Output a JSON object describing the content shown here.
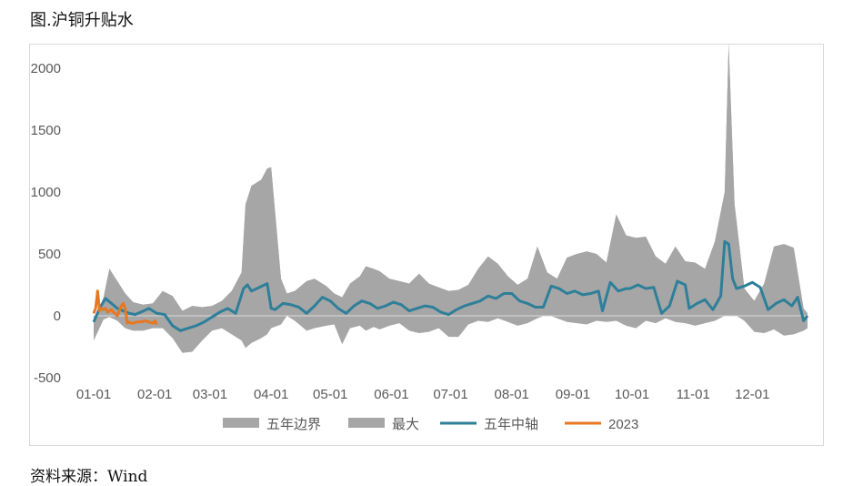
{
  "figure_title": "图.沪铜升贴水",
  "source_note": "资料来源：Wind",
  "colors": {
    "band_fill": "#a6a6a6",
    "max_fill": "#a6a6a6",
    "median_line": "#2e7f99",
    "current_line": "#e87722",
    "zero_line": "#d9d9d9",
    "tick_text": "#595959"
  },
  "chart_data": {
    "type": "area",
    "title": "",
    "xlabel": "",
    "ylabel": "",
    "ylim": [
      -500,
      2000
    ],
    "yticks": [
      -500,
      0,
      500,
      1000,
      1500,
      2000
    ],
    "xlim": [
      0,
      362
    ],
    "xticks": [
      {
        "label": "01-01",
        "x": 0
      },
      {
        "label": "02-01",
        "x": 31
      },
      {
        "label": "03-01",
        "x": 59
      },
      {
        "label": "04-01",
        "x": 90
      },
      {
        "label": "05-01",
        "x": 120
      },
      {
        "label": "06-01",
        "x": 151
      },
      {
        "label": "07-01",
        "x": 181
      },
      {
        "label": "08-01",
        "x": 212
      },
      {
        "label": "09-01",
        "x": 243
      },
      {
        "label": "10-01",
        "x": 273
      },
      {
        "label": "11-01",
        "x": 304
      },
      {
        "label": "12-01",
        "x": 334
      }
    ],
    "grid": false,
    "legend_position": "bottom",
    "legend": [
      "五年边界",
      "最大",
      "五年中轴",
      "2023"
    ],
    "series": [
      {
        "name": "五年边界",
        "kind": "band",
        "x": [
          0,
          5,
          8,
          12,
          16,
          20,
          25,
          30,
          35,
          40,
          45,
          50,
          55,
          60,
          65,
          70,
          75,
          77,
          80,
          85,
          88,
          90,
          95,
          98,
          102,
          108,
          112,
          118,
          122,
          126,
          130,
          135,
          138,
          142,
          145,
          150,
          155,
          160,
          165,
          170,
          175,
          180,
          185,
          190,
          195,
          200,
          205,
          210,
          215,
          220,
          225,
          230,
          235,
          240,
          245,
          250,
          255,
          260,
          265,
          270,
          275,
          280,
          285,
          290,
          295,
          300,
          305,
          310,
          315,
          320,
          322,
          325,
          330,
          335,
          340,
          345,
          350,
          355,
          360,
          362
        ],
        "lower": [
          -200,
          -30,
          -10,
          -40,
          -100,
          -120,
          -120,
          -100,
          -100,
          -180,
          -300,
          -290,
          -200,
          -120,
          -100,
          -150,
          -200,
          -260,
          -220,
          -180,
          -150,
          -100,
          -70,
          0,
          -40,
          -120,
          -100,
          -80,
          -70,
          -230,
          -100,
          -80,
          -120,
          -90,
          -110,
          -80,
          -60,
          -120,
          -140,
          -130,
          -100,
          -170,
          -170,
          -70,
          -40,
          -50,
          -20,
          -50,
          -80,
          -60,
          -20,
          10,
          -20,
          -50,
          -60,
          -70,
          -40,
          -50,
          -40,
          -80,
          -100,
          -40,
          -60,
          -20,
          -50,
          -60,
          -80,
          -60,
          -40,
          0,
          20,
          10,
          -40,
          -130,
          -140,
          -110,
          -160,
          -150,
          -120,
          -100
        ],
        "upper": [
          -60,
          150,
          380,
          280,
          180,
          110,
          90,
          100,
          200,
          160,
          40,
          80,
          70,
          80,
          120,
          200,
          350,
          900,
          1050,
          1100,
          1190,
          1200,
          300,
          180,
          200,
          280,
          300,
          240,
          180,
          150,
          260,
          320,
          400,
          380,
          360,
          300,
          280,
          260,
          340,
          260,
          230,
          200,
          210,
          250,
          380,
          480,
          420,
          320,
          250,
          300,
          560,
          350,
          300,
          470,
          500,
          520,
          500,
          430,
          820,
          650,
          630,
          640,
          480,
          420,
          560,
          440,
          430,
          380,
          600,
          1000,
          2200,
          900,
          220,
          120,
          260,
          560,
          580,
          550,
          60,
          20
        ]
      },
      {
        "name": "最大",
        "kind": "area",
        "x": [
          0,
          5,
          8,
          12,
          16,
          20,
          25,
          30,
          35,
          40,
          45,
          50,
          55,
          60,
          65,
          70,
          75,
          77,
          80,
          85,
          88,
          90,
          95,
          98,
          102,
          108,
          112,
          118,
          122,
          126,
          130,
          135,
          138,
          142,
          145,
          150,
          155,
          160,
          165,
          170,
          175,
          180,
          185,
          190,
          195,
          200,
          205,
          210,
          215,
          220,
          225,
          230,
          235,
          240,
          245,
          250,
          255,
          260,
          265,
          270,
          275,
          280,
          285,
          290,
          295,
          300,
          305,
          310,
          315,
          320,
          322,
          325,
          330,
          335,
          340,
          345,
          350,
          355,
          360,
          362
        ],
        "values": [
          -60,
          150,
          380,
          280,
          180,
          110,
          90,
          100,
          200,
          160,
          40,
          80,
          70,
          80,
          120,
          200,
          350,
          900,
          1050,
          1100,
          1190,
          1200,
          300,
          180,
          200,
          280,
          300,
          240,
          180,
          150,
          260,
          320,
          400,
          380,
          360,
          300,
          280,
          260,
          340,
          260,
          230,
          200,
          210,
          250,
          380,
          480,
          420,
          320,
          250,
          300,
          560,
          350,
          300,
          470,
          500,
          520,
          500,
          430,
          820,
          650,
          630,
          640,
          480,
          420,
          560,
          440,
          430,
          380,
          600,
          1000,
          2200,
          900,
          220,
          120,
          260,
          560,
          580,
          550,
          60,
          20
        ]
      },
      {
        "name": "五年中轴",
        "kind": "line",
        "x": [
          0,
          3,
          6,
          9,
          12,
          15,
          18,
          21,
          24,
          28,
          32,
          36,
          40,
          44,
          48,
          52,
          56,
          60,
          64,
          68,
          72,
          76,
          78,
          80,
          84,
          88,
          90,
          92,
          96,
          100,
          104,
          108,
          112,
          116,
          120,
          124,
          128,
          132,
          136,
          140,
          144,
          148,
          152,
          156,
          160,
          164,
          168,
          172,
          176,
          180,
          184,
          188,
          192,
          196,
          200,
          204,
          208,
          212,
          216,
          220,
          224,
          228,
          232,
          236,
          240,
          244,
          248,
          252,
          256,
          258,
          262,
          266,
          270,
          272,
          276,
          280,
          284,
          288,
          292,
          296,
          300,
          302,
          306,
          310,
          314,
          318,
          320,
          322,
          324,
          326,
          330,
          334,
          338,
          342,
          346,
          350,
          354,
          357,
          360,
          362
        ],
        "values": [
          -50,
          60,
          140,
          100,
          60,
          40,
          20,
          10,
          30,
          60,
          20,
          10,
          -80,
          -120,
          -100,
          -80,
          -50,
          -10,
          30,
          60,
          20,
          220,
          250,
          200,
          230,
          260,
          60,
          50,
          100,
          90,
          70,
          20,
          80,
          150,
          120,
          60,
          20,
          80,
          120,
          100,
          60,
          80,
          110,
          90,
          40,
          60,
          80,
          70,
          30,
          10,
          50,
          80,
          100,
          120,
          160,
          140,
          180,
          180,
          120,
          100,
          70,
          70,
          240,
          220,
          180,
          200,
          170,
          180,
          200,
          40,
          270,
          200,
          220,
          220,
          250,
          220,
          230,
          20,
          80,
          280,
          250,
          60,
          100,
          130,
          50,
          160,
          600,
          580,
          300,
          220,
          240,
          270,
          230,
          50,
          100,
          130,
          80,
          150,
          -40,
          0
        ]
      },
      {
        "name": "2023",
        "kind": "line",
        "x": [
          0,
          1,
          2,
          3,
          4,
          5,
          6,
          7,
          8,
          9,
          10,
          12,
          14,
          15,
          16,
          17,
          18,
          19,
          20,
          22,
          24,
          26,
          28,
          30,
          31,
          32
        ],
        "values": [
          20,
          60,
          200,
          40,
          60,
          50,
          60,
          30,
          40,
          50,
          30,
          0,
          80,
          100,
          60,
          -60,
          -50,
          -60,
          -60,
          -50,
          -50,
          -40,
          -50,
          -60,
          -40,
          -70
        ]
      }
    ]
  }
}
